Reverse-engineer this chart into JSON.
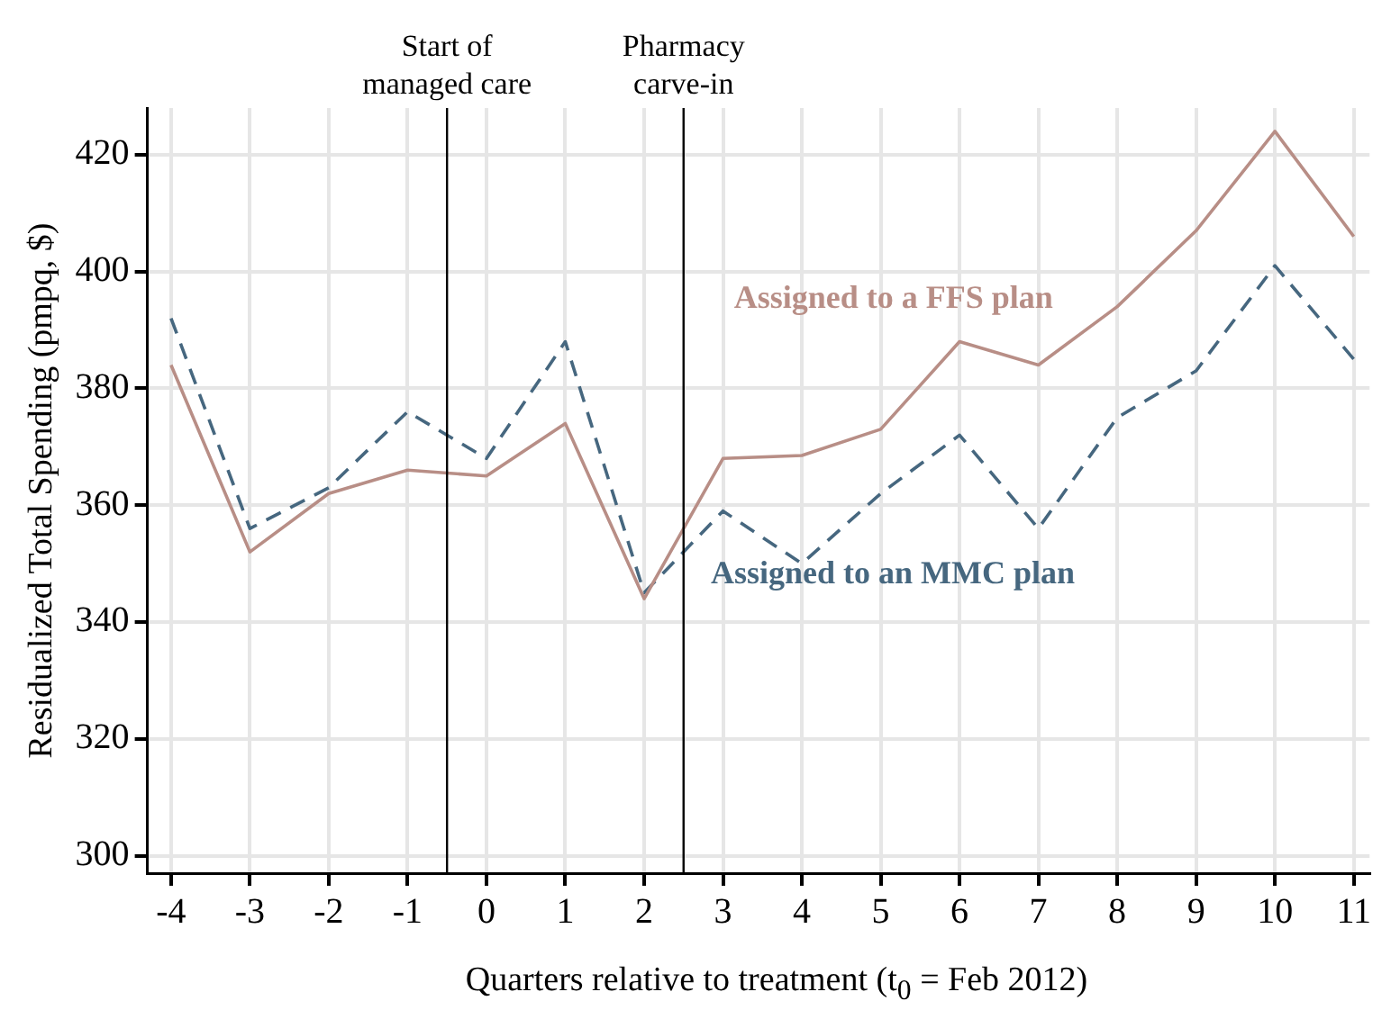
{
  "chart_data": {
    "type": "line",
    "xlabel": "Quarters relative to treatment (t$_{0}$ = Feb 2012)",
    "ylabel": "Residualized Total Spending (pmpq, $)",
    "x": [
      -4,
      -3,
      -2,
      -1,
      0,
      1,
      2,
      3,
      4,
      5,
      6,
      7,
      8,
      9,
      10,
      11
    ],
    "series": [
      {
        "name": "Assigned to a FFS plan",
        "color": "#b88e86",
        "line_style": "solid",
        "values": [
          384,
          352,
          362,
          366,
          365,
          374,
          344,
          368,
          368.5,
          373,
          388,
          384,
          394,
          407,
          424,
          406
        ]
      },
      {
        "name": "Assigned to an MMC plan",
        "color": "#46677f",
        "line_style": "dashed",
        "values": [
          392,
          356,
          363,
          376,
          368,
          388,
          345,
          359,
          350,
          362,
          372,
          356,
          375,
          383,
          401,
          385
        ]
      }
    ],
    "xlim": [
      -4.3,
      11.2
    ],
    "xticks": [
      -4,
      -3,
      -2,
      -1,
      0,
      1,
      2,
      3,
      4,
      5,
      6,
      7,
      8,
      9,
      10,
      11
    ],
    "ylim": [
      297,
      428
    ],
    "yticks": [
      300,
      320,
      340,
      360,
      380,
      400,
      420
    ],
    "ref_lines": [
      {
        "axis": "x",
        "value": -0.5,
        "label": "Start of\nmanaged care",
        "color": "#000000"
      },
      {
        "axis": "x",
        "value": 2.5,
        "label": "Pharmacy\ncarve-in",
        "color": "#000000"
      }
    ],
    "grid": true,
    "legend": false,
    "marker": "none"
  }
}
